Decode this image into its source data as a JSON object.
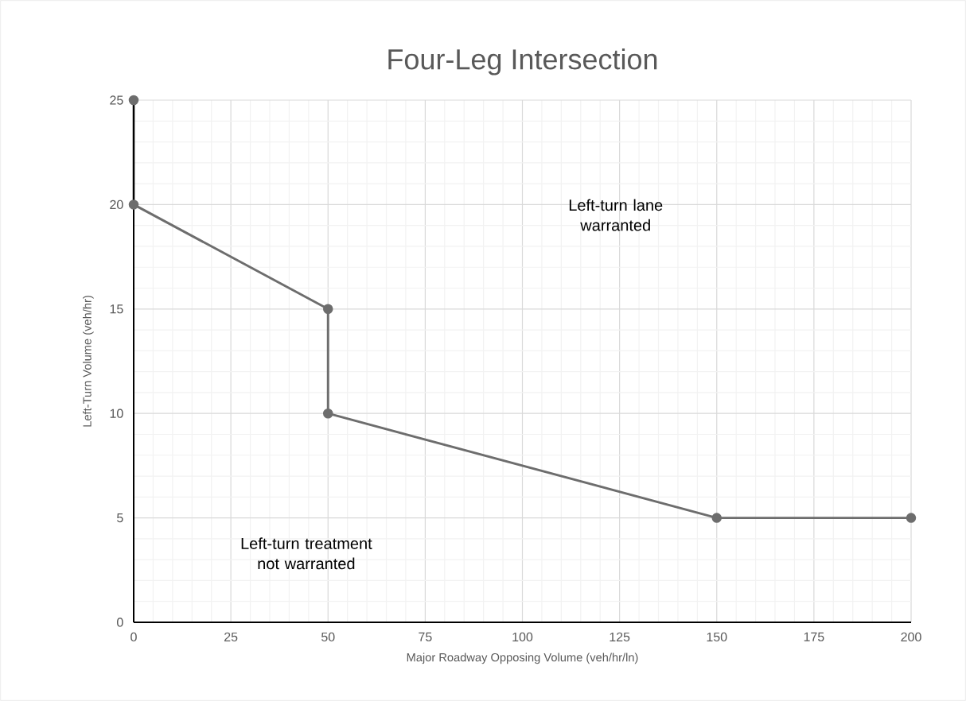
{
  "chart_data": {
    "type": "line",
    "title": "Four-Leg Intersection",
    "xlabel": "Major Roadway Opposing Volume (veh/hr/ln)",
    "ylabel": "Left-Turn Volume (veh/hr)",
    "x": [
      0,
      0,
      50,
      50,
      150,
      200
    ],
    "series": [
      {
        "color": "#6d6d6d",
        "values": [
          25,
          20,
          15,
          10,
          5,
          5
        ]
      }
    ],
    "xlim": [
      0,
      200
    ],
    "ylim": [
      0,
      25
    ],
    "xticks": [
      0,
      25,
      50,
      75,
      100,
      125,
      150,
      175,
      200
    ],
    "yticks": [
      0,
      5,
      10,
      15,
      20,
      25
    ],
    "grid": true,
    "marker": "circle",
    "line_style": "solid",
    "legend": false,
    "annotations": [
      "Left-turn lane warranted",
      "Left-turn treatment not warranted"
    ]
  }
}
